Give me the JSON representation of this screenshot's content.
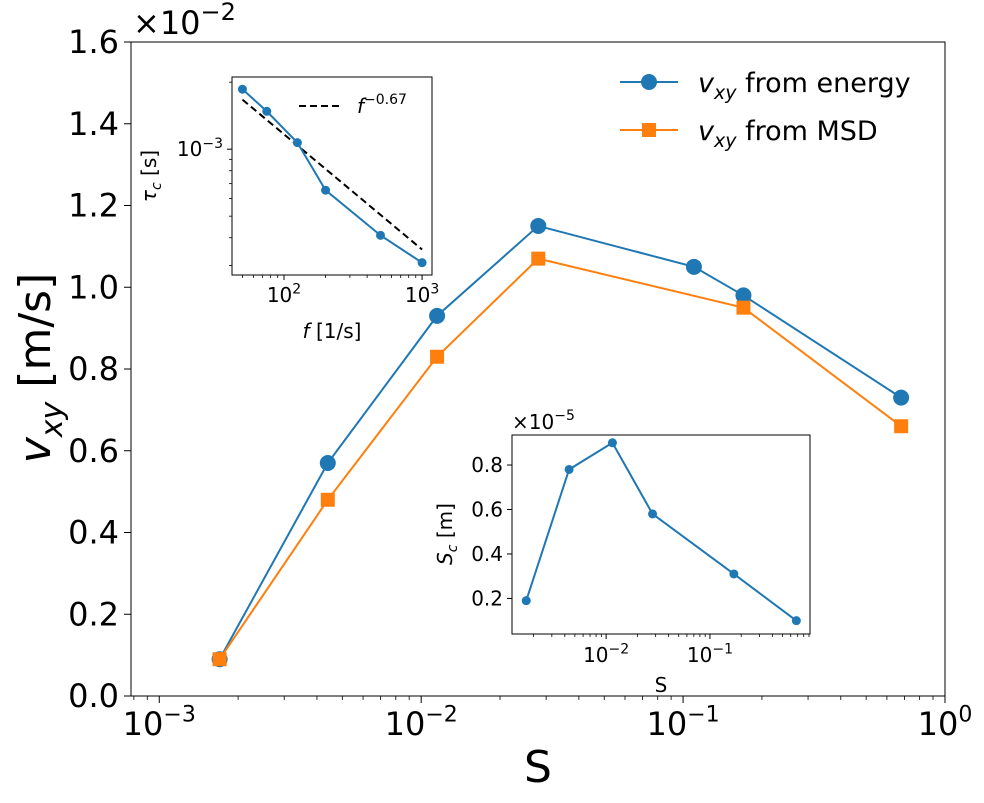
{
  "chart_data": [
    {
      "id": "main",
      "type": "line",
      "xscale": "log",
      "xlabel": "S",
      "ylabel": {
        "var": "v",
        "sub": "xy",
        "unit": " [m/s]"
      },
      "ylim": [
        0.0,
        1.6
      ],
      "yticks": [
        "0.0",
        "0.2",
        "0.4",
        "0.6",
        "0.8",
        "1.0",
        "1.2",
        "1.4",
        "1.6"
      ],
      "xticks": [
        {
          "base": "10",
          "exp": "−3"
        },
        {
          "base": "10",
          "exp": "−2"
        },
        {
          "base": "10",
          "exp": "−1"
        },
        {
          "base": "10",
          "exp": "0"
        }
      ],
      "y_offset_label": {
        "prefix": "×10",
        "exp": "−2"
      },
      "legend_position": "top-right",
      "series": [
        {
          "name": "from energy",
          "label_var": "v",
          "label_sub": "xy",
          "color": "#1f77b4",
          "marker": "circle",
          "x": [
            0.0017,
            0.0044,
            0.0115,
            0.028,
            0.11,
            0.17,
            0.68
          ],
          "y": [
            0.09,
            0.57,
            0.93,
            1.15,
            1.05,
            0.98,
            0.73
          ]
        },
        {
          "name": "from MSD",
          "label_var": "v",
          "label_sub": "xy",
          "color": "#ff7f0e",
          "marker": "square",
          "x": [
            0.0017,
            0.0044,
            0.0115,
            0.028,
            0.17,
            0.68
          ],
          "y": [
            0.09,
            0.48,
            0.83,
            1.07,
            0.95,
            0.66
          ]
        }
      ]
    },
    {
      "id": "inset_tau",
      "type": "line",
      "xscale": "log",
      "yscale": "log",
      "xlabel": {
        "var": "f",
        "unit": " [1/s]"
      },
      "ylabel": {
        "var": "τ",
        "sub": "c",
        "unit": " [s]"
      },
      "xticks": [
        {
          "base": "10",
          "exp": "2"
        },
        {
          "base": "10",
          "exp": "3"
        }
      ],
      "yticks": [
        {
          "base": "10",
          "exp": "−3"
        }
      ],
      "legend": {
        "var": "f",
        "exp": "−0.67"
      },
      "series": [
        {
          "name": "tau_c",
          "color": "#1f77b4",
          "marker": "circle",
          "x": [
            50,
            75,
            125,
            200,
            500,
            1000
          ],
          "y": [
            0.00186,
            0.00148,
            0.00107,
            0.000654,
            0.00041,
            0.000309
          ]
        },
        {
          "name": "fit",
          "color": "#000000",
          "style": "dashed",
          "exponent": -0.67,
          "x": [
            50,
            1000
          ],
          "y": [
            0.00167,
            0.000354
          ]
        }
      ]
    },
    {
      "id": "inset_sc",
      "type": "line",
      "xscale": "log",
      "xlabel": "S",
      "ylabel": {
        "var": "S",
        "sub": "c",
        "unit": " [m]"
      },
      "y_offset_label": {
        "prefix": "×10",
        "exp": "−5"
      },
      "yticks": [
        "0.2",
        "0.4",
        "0.6",
        "0.8"
      ],
      "xticks": [
        {
          "base": "10",
          "exp": "−2"
        },
        {
          "base": "10",
          "exp": "−1"
        }
      ],
      "series": [
        {
          "name": "S_c",
          "color": "#1f77b4",
          "marker": "circle",
          "x": [
            0.0017,
            0.0044,
            0.0115,
            0.028,
            0.17,
            0.68
          ],
          "y": [
            0.19,
            0.78,
            0.9,
            0.58,
            0.31,
            0.1
          ]
        }
      ]
    }
  ]
}
